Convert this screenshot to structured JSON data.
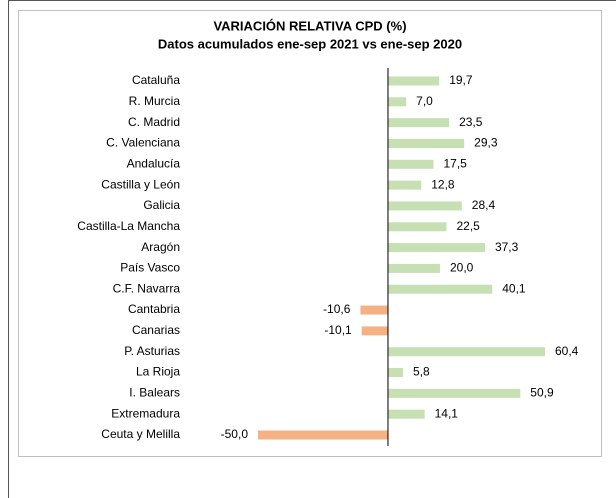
{
  "chart_data": {
    "type": "hbar",
    "title": "VARIACIÓN RELATIVA CPD (%)",
    "subtitle": "Datos acumulados ene-sep 2021 vs ene-sep 2020",
    "categories": [
      "Cataluña",
      "R. Murcia",
      "C. Madrid",
      "C. Valenciana",
      "Andalucía",
      "Castilla y León",
      "Galicia",
      "Castilla-La Mancha",
      "Aragón",
      "País Vasco",
      "C.F. Navarra",
      "Cantabria",
      "Canarias",
      "P. Asturias",
      "La Rioja",
      "I. Balears",
      "Extremadura",
      "Ceuta y Melilla"
    ],
    "values": [
      19.7,
      7.0,
      23.5,
      29.3,
      17.5,
      12.8,
      28.4,
      22.5,
      37.3,
      20.0,
      40.1,
      -10.6,
      -10.1,
      60.4,
      5.8,
      50.9,
      14.1,
      -50.0
    ],
    "value_labels": [
      "19,7",
      "7,0",
      "23,5",
      "29,3",
      "17,5",
      "12,8",
      "28,4",
      "22,5",
      "37,3",
      "20,0",
      "40,1",
      "-10,6",
      "-10,1",
      "60,4",
      "5,8",
      "50,9",
      "14,1",
      "-50,0"
    ],
    "positive_color": "#c6e0b4",
    "negative_color": "#f4b183",
    "xlim": [
      -50,
      60.4
    ]
  }
}
